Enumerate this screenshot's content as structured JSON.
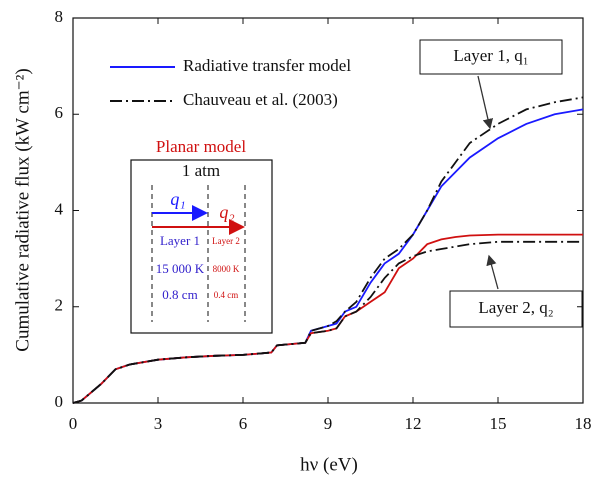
{
  "chart_data": {
    "type": "line",
    "x_label": "hν (eV)",
    "y_label": "Cumulative radiative flux (kW cm⁻²)",
    "x": [
      0,
      0.3,
      0.6,
      1,
      1.5,
      2,
      3,
      4,
      5,
      6,
      7,
      7.2,
      8.2,
      8.4,
      9,
      9.3,
      9.6,
      10,
      10.5,
      11,
      11.5,
      12,
      12.5,
      13,
      13.5,
      14,
      15,
      16,
      17,
      18
    ],
    "series": [
      {
        "name": "Radiative transfer model",
        "color": "#1a1aff",
        "dash": "solid",
        "values": [
          0,
          0.05,
          0.2,
          0.4,
          0.7,
          0.8,
          0.9,
          0.95,
          0.98,
          1.0,
          1.05,
          1.2,
          1.25,
          1.5,
          1.6,
          1.65,
          1.9,
          2.0,
          2.5,
          2.9,
          3.1,
          3.5,
          4.0,
          4.5,
          4.8,
          5.1,
          5.5,
          5.8,
          6.0,
          6.1
        ]
      },
      {
        "color": "#d01010",
        "dash": "solid",
        "values": [
          0,
          0.05,
          0.2,
          0.4,
          0.7,
          0.8,
          0.9,
          0.95,
          0.98,
          1.0,
          1.05,
          1.2,
          1.25,
          1.45,
          1.5,
          1.55,
          1.8,
          1.9,
          2.1,
          2.3,
          2.8,
          3.0,
          3.3,
          3.4,
          3.45,
          3.48,
          3.5,
          3.5,
          3.5,
          3.5
        ]
      },
      {
        "name": "Chauveau et al. (2003)",
        "color": "#111111",
        "dash": "dash-dot",
        "values": [
          0,
          0.05,
          0.2,
          0.4,
          0.7,
          0.8,
          0.9,
          0.95,
          0.98,
          1.0,
          1.05,
          1.2,
          1.25,
          1.5,
          1.6,
          1.7,
          1.9,
          2.1,
          2.6,
          3.0,
          3.2,
          3.5,
          4.0,
          4.6,
          5.0,
          5.4,
          5.8,
          6.1,
          6.25,
          6.35
        ]
      },
      {
        "color": "#111111",
        "dash": "dash-dot",
        "values": [
          0,
          0.05,
          0.2,
          0.4,
          0.7,
          0.8,
          0.9,
          0.95,
          0.98,
          1.0,
          1.05,
          1.2,
          1.25,
          1.45,
          1.5,
          1.55,
          1.8,
          1.9,
          2.2,
          2.6,
          2.9,
          3.05,
          3.15,
          3.2,
          3.25,
          3.3,
          3.35,
          3.35,
          3.35,
          3.35
        ]
      }
    ],
    "xlim": [
      0,
      18
    ],
    "ylim": [
      0,
      8
    ],
    "xticks": [
      0,
      3,
      6,
      9,
      12,
      15,
      18
    ],
    "yticks": [
      0,
      2,
      4,
      6,
      8
    ],
    "annotations": [
      "Layer 1, q₁",
      "Layer 2, q₂"
    ],
    "inset": {
      "title": "Planar model",
      "pressure": "1 atm",
      "q1": "q₁",
      "q2": "q₂",
      "layer1": "Layer 1",
      "layer2": "Layer 2",
      "t1": "15 000 K",
      "t2": "8000 K",
      "d1": "0.8 cm",
      "d2": "0.4 cm"
    }
  }
}
